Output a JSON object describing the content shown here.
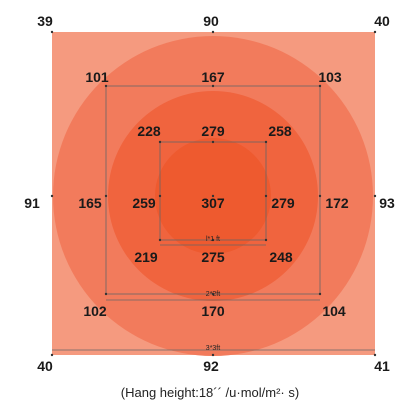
{
  "colors": {
    "outer_square": "#F59A7F",
    "big_circle": "#F27B5C",
    "mid_circle": "#F0643E",
    "small_circle": "#EE5A2F",
    "lines": "#666666",
    "text": "#1a1a1a"
  },
  "readings": {
    "outer": {
      "top_left": "39",
      "top_center": "90",
      "top_right": "40",
      "middle_left": "91",
      "middle_right": "93",
      "bottom_left": "40",
      "bottom_center": "92",
      "bottom_right": "41"
    },
    "ring_2x2": {
      "top_left": "101",
      "top_center": "167",
      "top_right": "103",
      "middle_left": "165",
      "middle_right": "172",
      "bottom_left": "102",
      "bottom_center": "170",
      "bottom_right": "104"
    },
    "ring_1x1": {
      "top_left": "228",
      "top_center": "279",
      "top_right": "258",
      "middle_left": "259",
      "center": "307",
      "middle_right": "279",
      "bottom_left": "219",
      "bottom_center": "275",
      "bottom_right": "248"
    }
  },
  "dimension_labels": {
    "one_by_one": "l*1 ft",
    "two_by_two": "2*2ft",
    "three_by_three": "3*3ft"
  },
  "caption": "(Hang height:18´´ /u·mol/m²· s)"
}
